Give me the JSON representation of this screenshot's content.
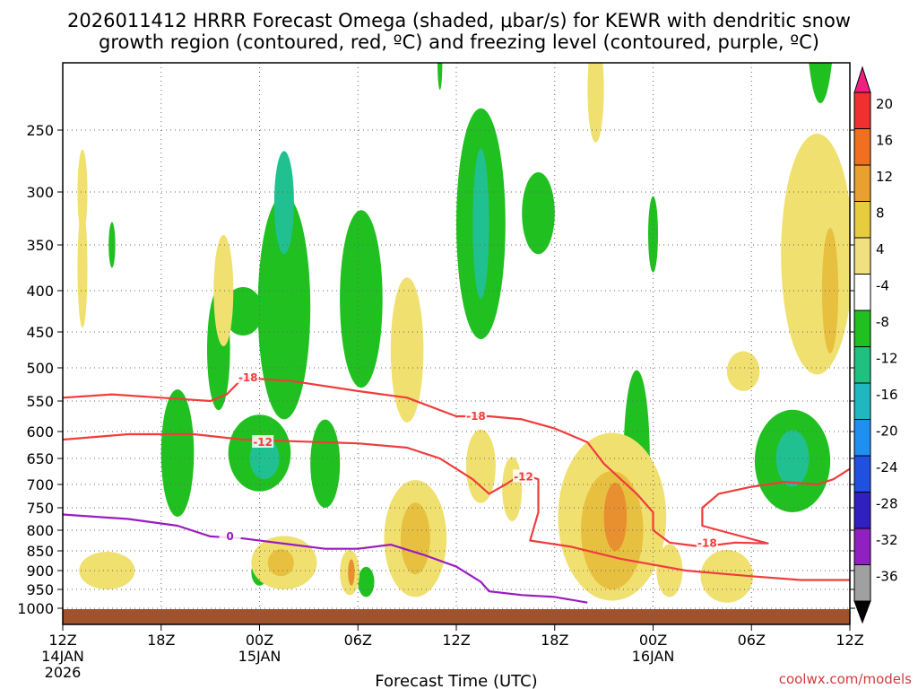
{
  "chart_data": {
    "type": "heatmap",
    "title_line1": "2026011412 HRRR Forecast Omega (shaded, μbar/s) for KEWR with dendritic snow",
    "title_line2": "growth region (contoured, red, ºC) and freezing level (contoured, purple, ºC)",
    "xlabel": "Forecast Time (UTC)",
    "credit": "coolwx.com/models",
    "x_hours_range": [
      0,
      48
    ],
    "x_ticks": [
      {
        "h": 0,
        "label": "12Z",
        "sub1": "14JAN",
        "sub2": "2026"
      },
      {
        "h": 6,
        "label": "18Z",
        "sub1": "",
        "sub2": ""
      },
      {
        "h": 12,
        "label": "00Z",
        "sub1": "15JAN",
        "sub2": ""
      },
      {
        "h": 18,
        "label": "06Z",
        "sub1": "",
        "sub2": ""
      },
      {
        "h": 24,
        "label": "12Z",
        "sub1": "",
        "sub2": ""
      },
      {
        "h": 30,
        "label": "18Z",
        "sub1": "",
        "sub2": ""
      },
      {
        "h": 36,
        "label": "00Z",
        "sub1": "16JAN",
        "sub2": ""
      },
      {
        "h": 42,
        "label": "06Z",
        "sub1": "",
        "sub2": ""
      },
      {
        "h": 48,
        "label": "12Z",
        "sub1": "",
        "sub2": ""
      }
    ],
    "y_ticks_hPa": [
      250,
      300,
      350,
      400,
      450,
      500,
      550,
      600,
      650,
      700,
      750,
      800,
      850,
      900,
      950,
      1000
    ],
    "grid": true,
    "colorbar": {
      "labels": [
        "20",
        "16",
        "12",
        "8",
        "4",
        "-4",
        "-8",
        "-12",
        "-16",
        "-20",
        "-24",
        "-28",
        "-32",
        "-36"
      ],
      "colors": [
        "#f02080",
        "#f03030",
        "#f07020",
        "#e8a030",
        "#e8cc40",
        "#f0e080",
        "#ffffff",
        "#20c020",
        "#20c080",
        "#20b8c0",
        "#2090f0",
        "#2050e0",
        "#3020c0",
        "#9020c0",
        "#a0a0a0",
        "#000000"
      ]
    },
    "contours": {
      "dgz_minus18_hPa": [
        [
          0,
          545
        ],
        [
          3,
          540
        ],
        [
          6,
          545
        ],
        [
          9,
          550
        ],
        [
          10,
          540
        ],
        [
          11,
          515
        ],
        [
          14,
          520
        ],
        [
          18,
          535
        ],
        [
          21,
          545
        ],
        [
          24,
          575
        ],
        [
          26,
          575
        ],
        [
          28,
          580
        ],
        [
          30,
          595
        ],
        [
          32,
          620
        ],
        [
          33,
          660
        ],
        [
          35,
          720
        ],
        [
          36,
          760
        ],
        [
          36,
          800
        ],
        [
          37,
          830
        ],
        [
          39,
          840
        ],
        [
          41,
          830
        ],
        [
          43,
          832
        ],
        [
          40,
          800
        ],
        [
          39,
          790
        ],
        [
          39,
          750
        ],
        [
          40,
          720
        ],
        [
          42,
          705
        ],
        [
          44,
          695
        ],
        [
          46,
          700
        ],
        [
          47,
          690
        ],
        [
          48,
          670
        ]
      ],
      "dgz_minus12_hPa": [
        [
          0,
          615
        ],
        [
          4,
          605
        ],
        [
          8,
          605
        ],
        [
          11,
          615
        ],
        [
          14,
          618
        ],
        [
          18,
          622
        ],
        [
          21,
          630
        ],
        [
          23,
          650
        ],
        [
          25,
          690
        ],
        [
          26,
          720
        ],
        [
          27,
          700
        ],
        [
          28,
          680
        ],
        [
          29,
          690
        ],
        [
          29,
          760
        ],
        [
          28.5,
          825
        ],
        [
          31,
          840
        ],
        [
          34,
          870
        ],
        [
          38,
          900
        ],
        [
          42,
          915
        ],
        [
          45,
          925
        ],
        [
          48,
          925
        ]
      ],
      "freezing_0C_hPa": [
        [
          0,
          765
        ],
        [
          4,
          775
        ],
        [
          7,
          790
        ],
        [
          9,
          815
        ],
        [
          11,
          820
        ],
        [
          14,
          835
        ],
        [
          16,
          845
        ],
        [
          18,
          845
        ],
        [
          20,
          835
        ],
        [
          22,
          860
        ],
        [
          24,
          890
        ],
        [
          25.5,
          930
        ],
        [
          26,
          955
        ],
        [
          28,
          965
        ],
        [
          30,
          970
        ],
        [
          32,
          985
        ]
      ],
      "labels": [
        {
          "text": "-18",
          "h": 11.3,
          "p": 515,
          "series": "dgz_minus18_hPa"
        },
        {
          "text": "-18",
          "h": 25.2,
          "p": 575,
          "series": "dgz_minus18_hPa"
        },
        {
          "text": "-18",
          "h": 39.3,
          "p": 832,
          "series": "dgz_minus18_hPa"
        },
        {
          "text": "-12",
          "h": 12.2,
          "p": 620,
          "series": "dgz_minus12_hPa"
        },
        {
          "text": "-12",
          "h": 28.1,
          "p": 685,
          "series": "dgz_minus12_hPa"
        },
        {
          "text": "0",
          "h": 10.2,
          "p": 815,
          "series": "freezing_0C_hPa"
        }
      ]
    },
    "omega_regions": [
      {
        "level": "-4",
        "center": [
          13.5,
          420
        ],
        "rx": 1.6,
        "ry": 160
      },
      {
        "level": "-8",
        "center": [
          13.5,
          310
        ],
        "rx": 0.6,
        "ry": 50
      },
      {
        "level": "-4",
        "center": [
          18.2,
          410
        ],
        "rx": 1.3,
        "ry": 120
      },
      {
        "level": "-4",
        "center": [
          9.5,
          475
        ],
        "rx": 0.7,
        "ry": 90
      },
      {
        "level": "-4",
        "center": [
          11.0,
          425
        ],
        "rx": 1.2,
        "ry": 30
      },
      {
        "level": "-4",
        "center": [
          25.5,
          330
        ],
        "rx": 1.5,
        "ry": 130
      },
      {
        "level": "-8",
        "center": [
          25.5,
          330
        ],
        "rx": 0.5,
        "ry": 80
      },
      {
        "level": "-4",
        "center": [
          29.0,
          320
        ],
        "rx": 1.0,
        "ry": 40
      },
      {
        "level": "-4",
        "center": [
          12.0,
          640
        ],
        "rx": 1.9,
        "ry": 75
      },
      {
        "level": "-8",
        "center": [
          12.3,
          650
        ],
        "rx": 0.9,
        "ry": 40
      },
      {
        "level": "-4",
        "center": [
          7.0,
          640
        ],
        "rx": 1.0,
        "ry": 130
      },
      {
        "level": "-4",
        "center": [
          16.0,
          660
        ],
        "rx": 0.9,
        "ry": 90
      },
      {
        "level": "-4",
        "center": [
          35.0,
          650
        ],
        "rx": 0.8,
        "ry": 190
      },
      {
        "level": "-4",
        "center": [
          44.5,
          655
        ],
        "rx": 2.3,
        "ry": 105
      },
      {
        "level": "-8",
        "center": [
          44.5,
          650
        ],
        "rx": 1.0,
        "ry": 55
      },
      {
        "level": "-4",
        "center": [
          12.0,
          905
        ],
        "rx": 0.5,
        "ry": 35
      },
      {
        "level": "-4",
        "center": [
          18.5,
          930
        ],
        "rx": 0.5,
        "ry": 40
      },
      {
        "level": "-4",
        "center": [
          46.2,
          150
        ],
        "rx": 0.9,
        "ry": 80
      },
      {
        "level": "-4",
        "center": [
          36.0,
          340
        ],
        "rx": 0.3,
        "ry": 40
      },
      {
        "level": "-4",
        "center": [
          3.0,
          350
        ],
        "rx": 0.2,
        "ry": 25
      },
      {
        "level": "-4",
        "center": [
          23.0,
          200
        ],
        "rx": 0.15,
        "ry": 20
      },
      {
        "level": "4",
        "center": [
          21.5,
          820
        ],
        "rx": 1.9,
        "ry": 150
      },
      {
        "level": "8",
        "center": [
          21.5,
          820
        ],
        "rx": 0.9,
        "ry": 90
      },
      {
        "level": "4",
        "center": [
          33.5,
          770
        ],
        "rx": 3.3,
        "ry": 210
      },
      {
        "level": "8",
        "center": [
          33.5,
          800
        ],
        "rx": 1.9,
        "ry": 150
      },
      {
        "level": "12",
        "center": [
          33.7,
          770
        ],
        "rx": 0.7,
        "ry": 80
      },
      {
        "level": "4",
        "center": [
          46.0,
          360
        ],
        "rx": 2.2,
        "ry": 150
      },
      {
        "level": "8",
        "center": [
          46.8,
          400
        ],
        "rx": 0.5,
        "ry": 80
      },
      {
        "level": "4",
        "center": [
          2.7,
          900
        ],
        "rx": 1.7,
        "ry": 50
      },
      {
        "level": "4",
        "center": [
          13.5,
          880
        ],
        "rx": 2.0,
        "ry": 70
      },
      {
        "level": "8",
        "center": [
          13.3,
          880
        ],
        "rx": 0.8,
        "ry": 35
      },
      {
        "level": "4",
        "center": [
          17.5,
          905
        ],
        "rx": 0.6,
        "ry": 60
      },
      {
        "level": "12",
        "center": [
          17.6,
          905
        ],
        "rx": 0.2,
        "ry": 35
      },
      {
        "level": "4",
        "center": [
          37.0,
          900
        ],
        "rx": 0.8,
        "ry": 70
      },
      {
        "level": "4",
        "center": [
          40.5,
          915
        ],
        "rx": 1.6,
        "ry": 70
      },
      {
        "level": "4",
        "center": [
          21.0,
          475
        ],
        "rx": 1.0,
        "ry": 110
      },
      {
        "level": "4",
        "center": [
          25.5,
          665
        ],
        "rx": 0.9,
        "ry": 75
      },
      {
        "level": "4",
        "center": [
          27.4,
          710
        ],
        "rx": 0.6,
        "ry": 70
      },
      {
        "level": "4",
        "center": [
          9.8,
          400
        ],
        "rx": 0.6,
        "ry": 70
      },
      {
        "level": "4",
        "center": [
          1.2,
          375
        ],
        "rx": 0.3,
        "ry": 70
      },
      {
        "level": "4",
        "center": [
          1.2,
          300
        ],
        "rx": 0.3,
        "ry": 40
      },
      {
        "level": "4",
        "center": [
          32.5,
          220
        ],
        "rx": 0.5,
        "ry": 40
      },
      {
        "level": "4",
        "center": [
          41.5,
          505
        ],
        "rx": 1.0,
        "ry": 30
      }
    ]
  }
}
